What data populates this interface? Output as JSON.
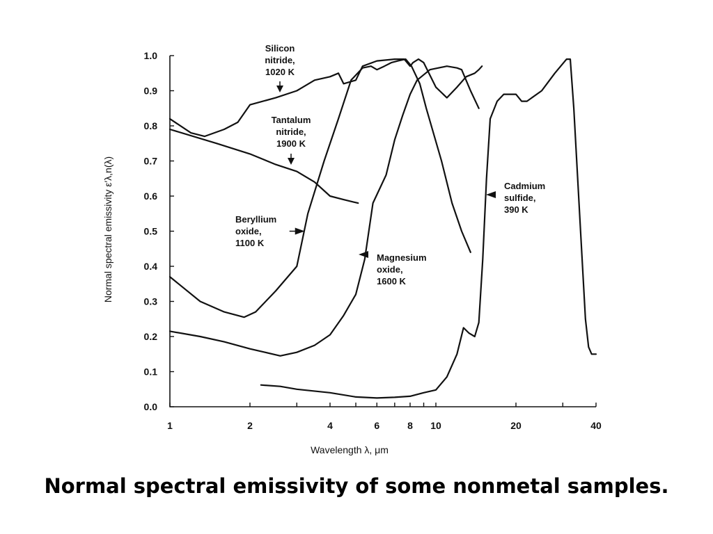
{
  "caption": "Normal spectral emissivity of some nonmetal samples.",
  "chart_data": {
    "type": "line",
    "xscale": "log",
    "xlim": [
      1,
      40
    ],
    "ylim": [
      0,
      1
    ],
    "xlabel": "Wavelength λ, μm",
    "ylabel": "Normal spectral emissivity ε′λ,n(λ)",
    "xticks": [
      1,
      2,
      4,
      6,
      8,
      10,
      20,
      40
    ],
    "xtick_labels": [
      "1",
      "2",
      "4",
      "6",
      "8",
      "10",
      "20",
      "40"
    ],
    "yticks": [
      0,
      0.1,
      0.2,
      0.3,
      0.4,
      0.5,
      0.6,
      0.7,
      0.8,
      0.9,
      1.0
    ],
    "ytick_labels": [
      "0.0",
      "0.1",
      "0.2",
      "0.3",
      "0.4",
      "0.5",
      "0.6",
      "0.7",
      "0.8",
      "0.9",
      "1.0"
    ],
    "grid": false,
    "series": [
      {
        "name": "Silicon nitride, 1020 K",
        "points": [
          [
            1.0,
            0.82
          ],
          [
            1.2,
            0.78
          ],
          [
            1.35,
            0.77
          ],
          [
            1.6,
            0.79
          ],
          [
            1.8,
            0.81
          ],
          [
            2.0,
            0.86
          ],
          [
            2.5,
            0.88
          ],
          [
            3.0,
            0.9
          ],
          [
            3.5,
            0.93
          ],
          [
            4.0,
            0.94
          ],
          [
            4.3,
            0.95
          ],
          [
            4.5,
            0.92
          ],
          [
            5.0,
            0.93
          ],
          [
            5.3,
            0.97
          ],
          [
            6.0,
            0.985
          ],
          [
            7.0,
            0.99
          ],
          [
            7.6,
            0.99
          ],
          [
            8.0,
            0.97
          ],
          [
            8.2,
            0.98
          ],
          [
            8.6,
            0.99
          ],
          [
            9.0,
            0.98
          ],
          [
            10.0,
            0.91
          ],
          [
            11.0,
            0.88
          ],
          [
            12.0,
            0.91
          ],
          [
            13.0,
            0.94
          ],
          [
            14.0,
            0.95
          ],
          [
            14.5,
            0.96
          ],
          [
            14.9,
            0.97
          ]
        ]
      },
      {
        "name": "Tantalum nitride, 1900 K",
        "points": [
          [
            1.0,
            0.79
          ],
          [
            1.5,
            0.75
          ],
          [
            2.0,
            0.72
          ],
          [
            2.5,
            0.69
          ],
          [
            3.0,
            0.67
          ],
          [
            3.5,
            0.64
          ],
          [
            4.0,
            0.6
          ],
          [
            4.5,
            0.59
          ],
          [
            5.1,
            0.58
          ]
        ]
      },
      {
        "name": "Beryllium oxide, 1100 K",
        "points": [
          [
            1.0,
            0.37
          ],
          [
            1.3,
            0.3
          ],
          [
            1.6,
            0.27
          ],
          [
            1.9,
            0.255
          ],
          [
            2.1,
            0.27
          ],
          [
            2.5,
            0.33
          ],
          [
            3.0,
            0.4
          ],
          [
            3.3,
            0.55
          ],
          [
            3.8,
            0.7
          ],
          [
            4.3,
            0.82
          ],
          [
            4.8,
            0.93
          ],
          [
            5.3,
            0.965
          ],
          [
            5.7,
            0.97
          ],
          [
            6.0,
            0.96
          ],
          [
            6.4,
            0.97
          ],
          [
            6.8,
            0.98
          ],
          [
            7.2,
            0.985
          ],
          [
            7.7,
            0.99
          ],
          [
            8.1,
            0.97
          ],
          [
            8.7,
            0.92
          ],
          [
            9.2,
            0.85
          ],
          [
            10.5,
            0.7
          ],
          [
            11.5,
            0.58
          ],
          [
            12.5,
            0.5
          ],
          [
            13.5,
            0.44
          ]
        ]
      },
      {
        "name": "Magnesium oxide, 1600 K",
        "points": [
          [
            1.0,
            0.215
          ],
          [
            1.3,
            0.2
          ],
          [
            1.6,
            0.185
          ],
          [
            2.0,
            0.165
          ],
          [
            2.6,
            0.145
          ],
          [
            3.0,
            0.155
          ],
          [
            3.5,
            0.175
          ],
          [
            4.0,
            0.205
          ],
          [
            4.5,
            0.26
          ],
          [
            5.0,
            0.32
          ],
          [
            5.4,
            0.42
          ],
          [
            5.8,
            0.58
          ],
          [
            6.5,
            0.66
          ],
          [
            7.0,
            0.76
          ],
          [
            7.5,
            0.83
          ],
          [
            8.0,
            0.89
          ],
          [
            8.5,
            0.93
          ],
          [
            9.5,
            0.96
          ],
          [
            11.0,
            0.97
          ],
          [
            12.0,
            0.965
          ],
          [
            12.5,
            0.96
          ],
          [
            13.5,
            0.9
          ],
          [
            14.5,
            0.85
          ]
        ]
      },
      {
        "name": "Cadmium sulfide, 390 K",
        "points": [
          [
            2.2,
            0.062
          ],
          [
            2.6,
            0.058
          ],
          [
            3.0,
            0.05
          ],
          [
            4.0,
            0.04
          ],
          [
            5.0,
            0.028
          ],
          [
            6.0,
            0.025
          ],
          [
            7.0,
            0.027
          ],
          [
            8.0,
            0.03
          ],
          [
            9.0,
            0.04
          ],
          [
            10.0,
            0.048
          ],
          [
            11.0,
            0.085
          ],
          [
            12.0,
            0.15
          ],
          [
            12.7,
            0.225
          ],
          [
            13.3,
            0.21
          ],
          [
            14.0,
            0.2
          ],
          [
            14.5,
            0.24
          ],
          [
            15.0,
            0.42
          ],
          [
            15.5,
            0.65
          ],
          [
            16.0,
            0.82
          ],
          [
            17.0,
            0.87
          ],
          [
            18.0,
            0.89
          ],
          [
            20.0,
            0.89
          ],
          [
            21.0,
            0.87
          ],
          [
            22.0,
            0.87
          ],
          [
            25.0,
            0.9
          ],
          [
            28.0,
            0.95
          ],
          [
            31.0,
            0.99
          ],
          [
            32.0,
            0.99
          ],
          [
            33.0,
            0.85
          ],
          [
            35.0,
            0.5
          ],
          [
            36.5,
            0.25
          ],
          [
            37.5,
            0.17
          ],
          [
            38.5,
            0.15
          ],
          [
            40.0,
            0.15
          ]
        ]
      }
    ],
    "annotations": [
      {
        "lines": [
          "Silicon",
          "nitride,",
          "1020 K"
        ],
        "arrow_to": [
          2.6,
          0.89
        ]
      },
      {
        "lines": [
          "Tantalum",
          "nitride,",
          "1900 K"
        ],
        "arrow_to": [
          2.8,
          0.68
        ]
      },
      {
        "lines": [
          "Beryllium",
          "oxide,",
          "1100 K"
        ],
        "arrow_to": [
          3.1,
          0.5
        ]
      },
      {
        "lines": [
          "Magnesium",
          "oxide,",
          "1600 K"
        ],
        "arrow_to": [
          5.6,
          0.42
        ]
      },
      {
        "lines": [
          "Cadmium",
          "sulfide,",
          "390 K"
        ],
        "arrow_to": [
          15.4,
          0.59
        ]
      }
    ]
  }
}
